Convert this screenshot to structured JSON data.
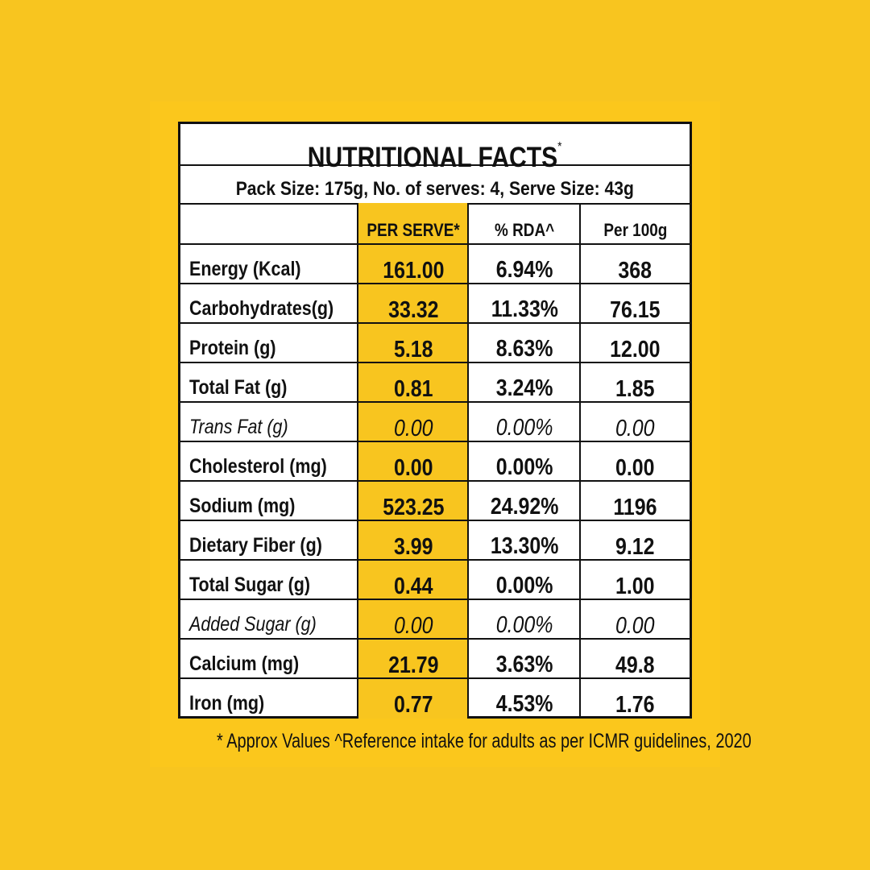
{
  "title": "NUTRITIONAL FACTS",
  "title_mark": "*",
  "pack_info": "Pack Size: 175g, No. of serves: 4, Serve Size: 43g",
  "columns": [
    "PER SERVE*",
    "% RDA^",
    "Per 100g"
  ],
  "rows": [
    {
      "name": "Energy (Kcal)",
      "per_serve": "161.00",
      "rda": "6.94%",
      "per_100g": "368",
      "italic": false
    },
    {
      "name": "Carbohydrates(g)",
      "per_serve": "33.32",
      "rda": "11.33%",
      "per_100g": "76.15",
      "italic": false
    },
    {
      "name": "Protein (g)",
      "per_serve": "5.18",
      "rda": "8.63%",
      "per_100g": "12.00",
      "italic": false
    },
    {
      "name": "Total Fat (g)",
      "per_serve": "0.81",
      "rda": "3.24%",
      "per_100g": "1.85",
      "italic": false
    },
    {
      "name": "Trans Fat (g)",
      "per_serve": "0.00",
      "rda": "0.00%",
      "per_100g": "0.00",
      "italic": true
    },
    {
      "name": "Cholesterol (mg)",
      "per_serve": "0.00",
      "rda": "0.00%",
      "per_100g": "0.00",
      "italic": false
    },
    {
      "name": "Sodium (mg)",
      "per_serve": "523.25",
      "rda": "24.92%",
      "per_100g": "1196",
      "italic": false
    },
    {
      "name": "Dietary Fiber (g)",
      "per_serve": "3.99",
      "rda": "13.30%",
      "per_100g": "9.12",
      "italic": false
    },
    {
      "name": "Total Sugar (g)",
      "per_serve": "0.44",
      "rda": "0.00%",
      "per_100g": "1.00",
      "italic": false
    },
    {
      "name": "Added Sugar (g)",
      "per_serve": "0.00",
      "rda": "0.00%",
      "per_100g": "0.00",
      "italic": true
    },
    {
      "name": "Calcium (mg)",
      "per_serve": "21.79",
      "rda": "3.63%",
      "per_100g": "49.8",
      "italic": false
    },
    {
      "name": "Iron (mg)",
      "per_serve": "0.77",
      "rda": "4.53%",
      "per_100g": "1.76",
      "italic": false
    }
  ],
  "footnote": "* Approx Values ^Reference intake for adults as per ICMR guidelines, 2020",
  "colors": {
    "background": "#f8c51f",
    "highlight_column": "#f8c51f",
    "table": "#ffffff",
    "ink": "#111111"
  }
}
